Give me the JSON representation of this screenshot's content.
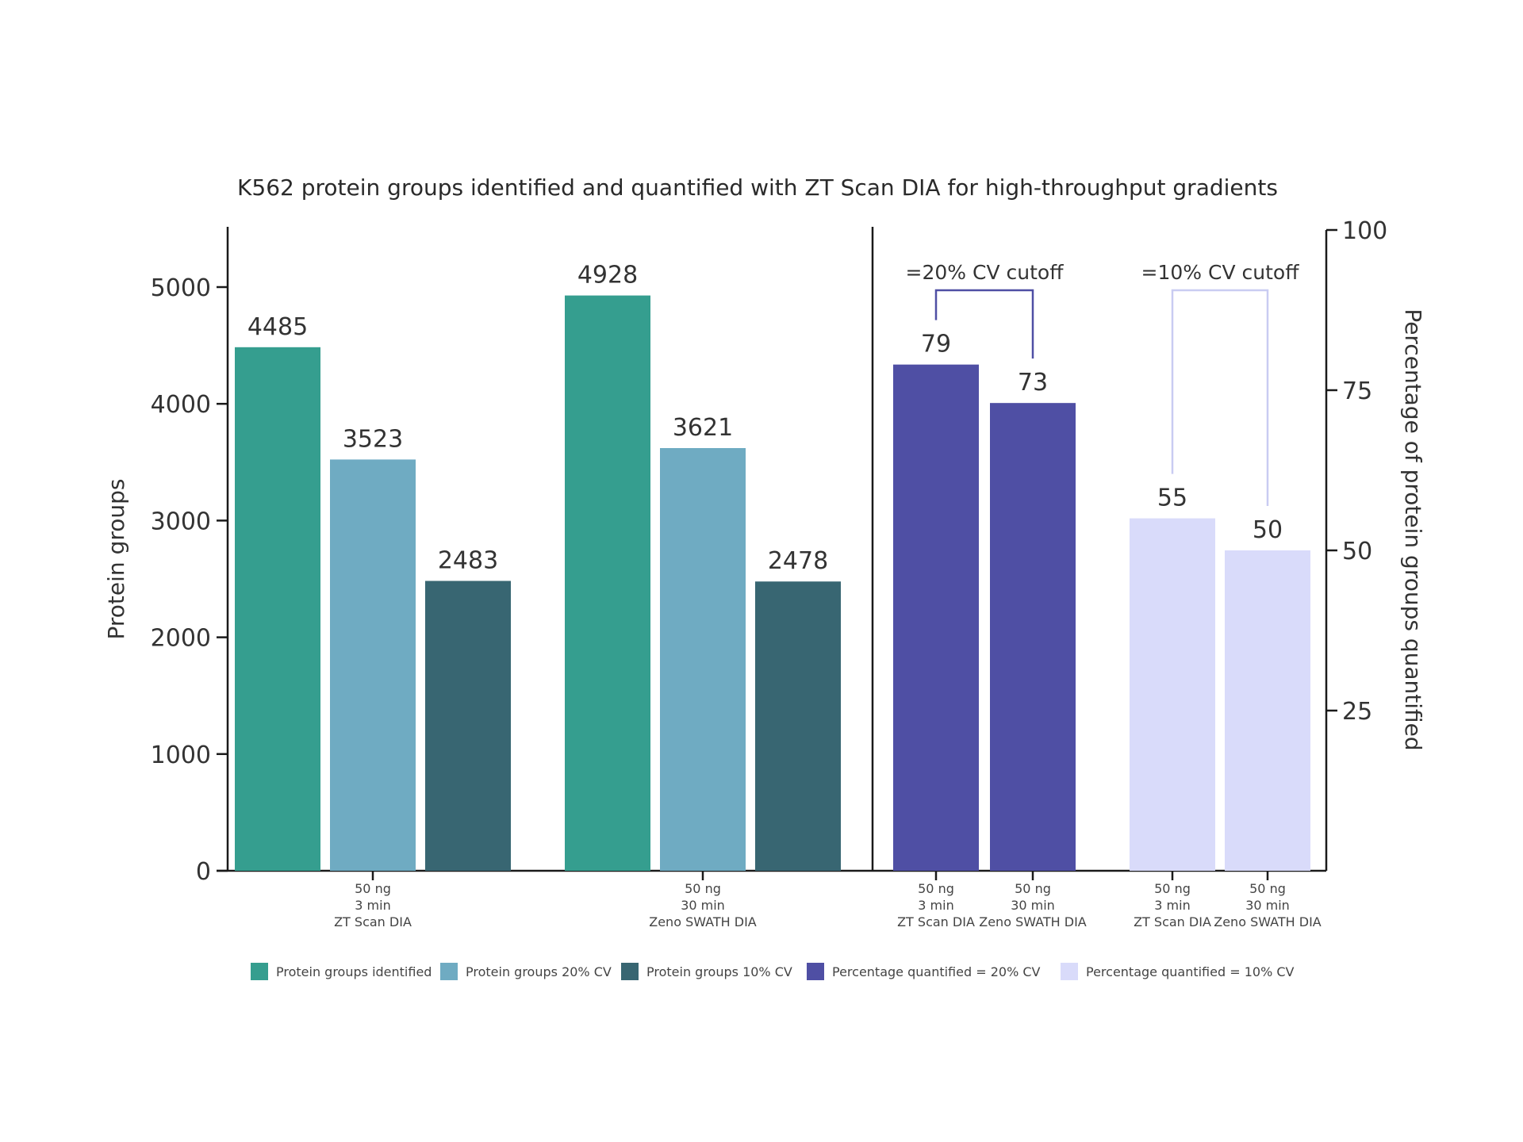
{
  "chart_data": {
    "type": "bar",
    "title": "K562 protein groups identified and quantified with ZT Scan DIA for high-throughput gradients",
    "ylabel": "Protein groups",
    "ylabel_right": "Percentage of protein groups quantified",
    "ylim": [
      0,
      5500
    ],
    "ylim_right": [
      0,
      100
    ],
    "yticks": [
      "0",
      "1000",
      "2000",
      "3000",
      "4000",
      "5000"
    ],
    "yticks_right": [
      "25",
      "50",
      "75",
      "100"
    ],
    "left_panel": {
      "groups": [
        {
          "label": [
            "50 ng",
            "3 min",
            "ZT Scan DIA"
          ],
          "values": [
            4485,
            3523,
            2483
          ],
          "labels": [
            "4485",
            "3523",
            "2483"
          ]
        },
        {
          "label": [
            "50 ng",
            "30 min",
            "Zeno SWATH DIA"
          ],
          "values": [
            4928,
            3621,
            2478
          ],
          "labels": [
            "4928",
            "3621",
            "2478"
          ]
        }
      ],
      "series": [
        "Protein groups identified",
        "Protein groups 20% CV",
        "Protein groups 10% CV"
      ]
    },
    "right_panel": {
      "groups": [
        {
          "bracket": "=20% CV cutoff",
          "series": "Percentage quantified = 20% CV",
          "bars": [
            {
              "label": [
                "50 ng",
                "3 min",
                "ZT Scan DIA"
              ],
              "value": 79,
              "text": "79"
            },
            {
              "label": [
                "50 ng",
                "30 min",
                "Zeno SWATH DIA"
              ],
              "value": 73,
              "text": "73"
            }
          ]
        },
        {
          "bracket": "=10% CV cutoff",
          "series": "Percentage quantified = 10% CV",
          "bars": [
            {
              "label": [
                "50 ng",
                "3 min",
                "ZT Scan DIA"
              ],
              "value": 55,
              "text": "55"
            },
            {
              "label": [
                "50 ng",
                "30 min",
                "Zeno SWATH DIA"
              ],
              "value": 50,
              "text": "50"
            }
          ]
        }
      ]
    },
    "legend": [
      {
        "label": "Protein groups identified",
        "color": "#359e8f"
      },
      {
        "label": "Protein groups 20% CV",
        "color": "#6fabc2"
      },
      {
        "label": "Protein groups 10% CV",
        "color": "#386672"
      },
      {
        "label": "Percentage quantified = 20% CV",
        "color": "#4f4fa4"
      },
      {
        "label": "Percentage quantified = 10% CV",
        "color": "#d9dbfa"
      }
    ],
    "colors": {
      "identified": "#359e8f",
      "cv20": "#6fabc2",
      "cv10": "#386672",
      "pct20": "#4f4fa4",
      "pct10": "#d9dbfa",
      "bracket20": "#4f4fa4",
      "bracket10": "#c9ccf2"
    }
  }
}
